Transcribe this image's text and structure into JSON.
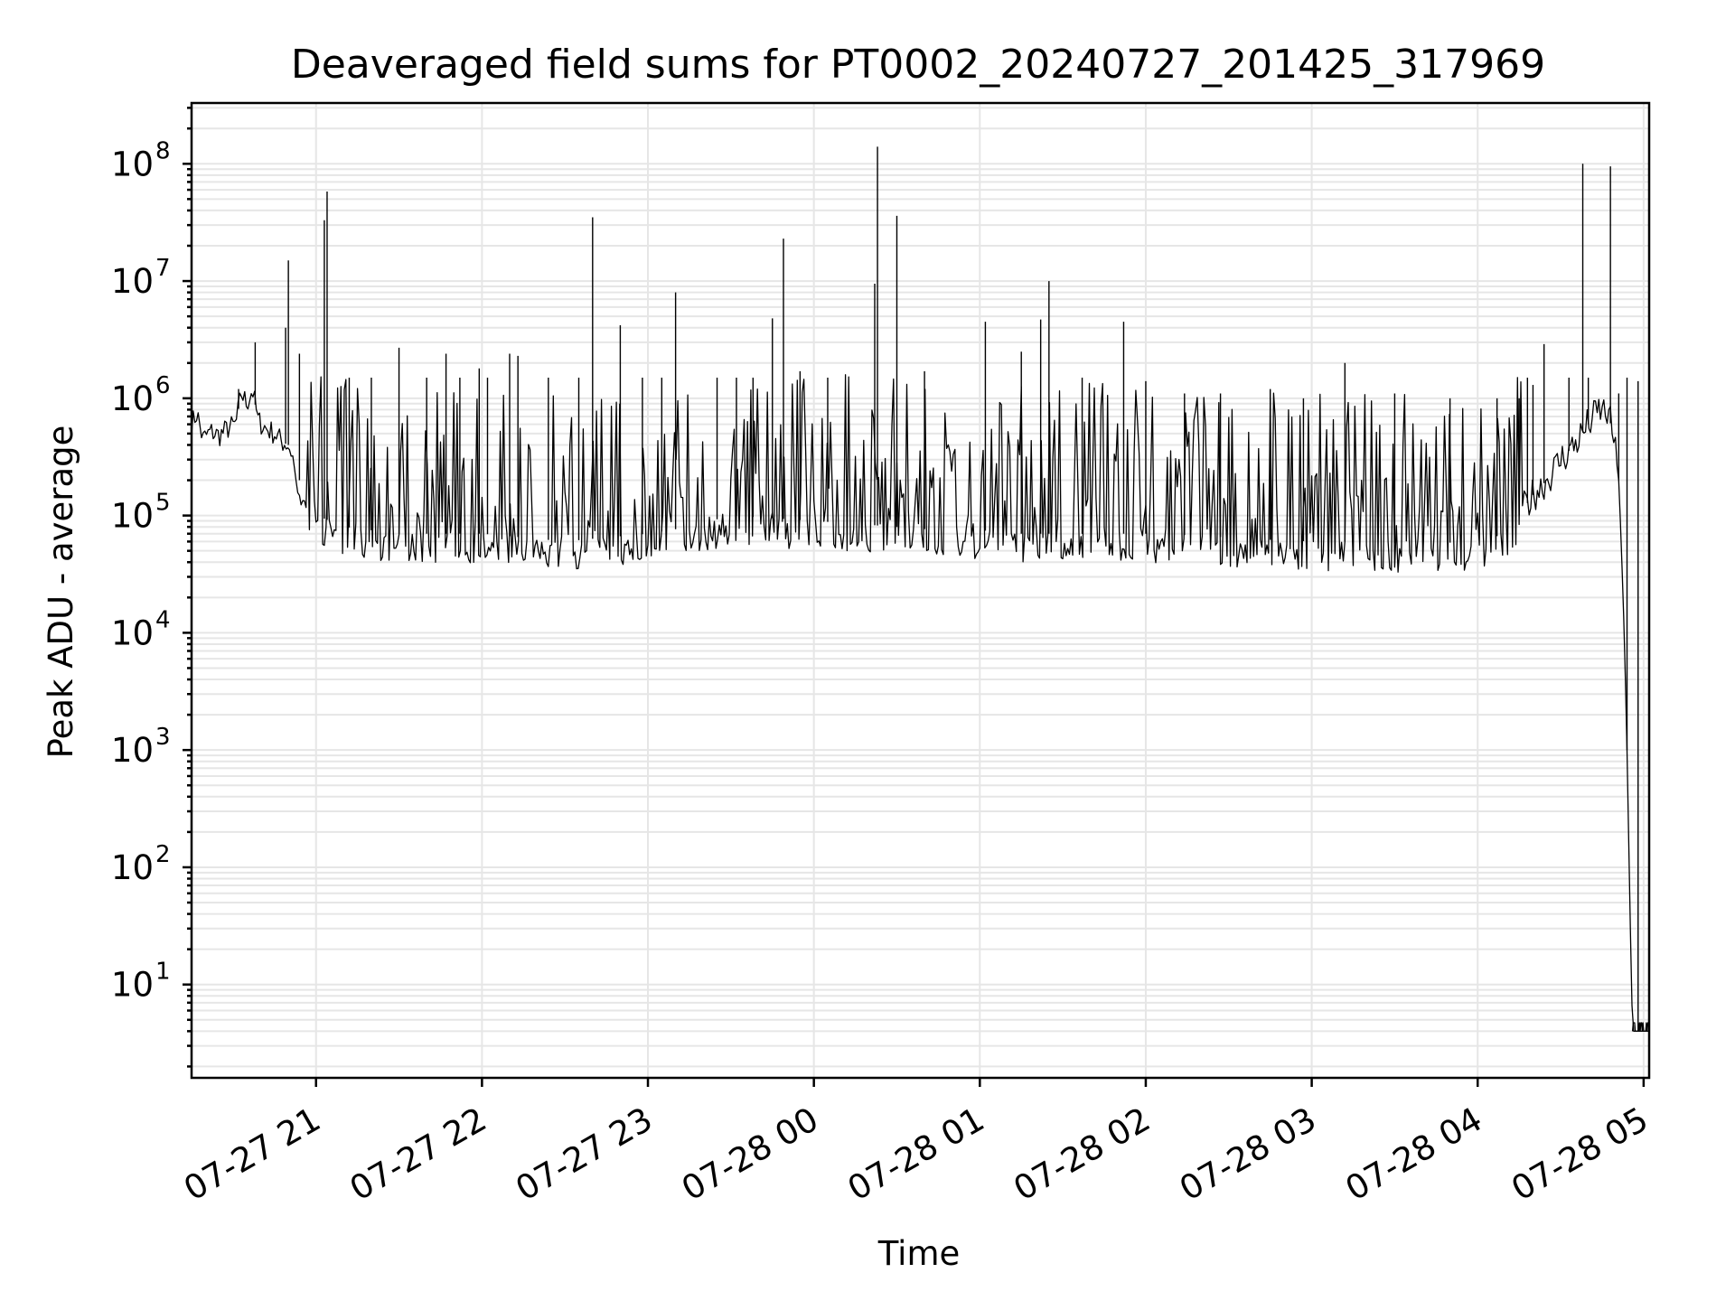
{
  "chart_data": {
    "type": "line",
    "title": "Deaveraged field sums for PT0002_20240727_201425_317969",
    "xlabel": "Time",
    "ylabel": "Peak ADU - average",
    "yscale": "log",
    "grid": true,
    "grid_color": "#e6e6e6",
    "xlim": [
      "2024-07-27 20:15",
      "2024-07-28 05:02"
    ],
    "ylim": [
      1.6,
      330000000
    ],
    "x_ticks": [
      {
        "t": "2024-07-27 21:00",
        "label": "07-27 21"
      },
      {
        "t": "2024-07-27 22:00",
        "label": "07-27 22"
      },
      {
        "t": "2024-07-27 23:00",
        "label": "07-27 23"
      },
      {
        "t": "2024-07-28 00:00",
        "label": "07-28 00"
      },
      {
        "t": "2024-07-28 01:00",
        "label": "07-28 01"
      },
      {
        "t": "2024-07-28 02:00",
        "label": "07-28 02"
      },
      {
        "t": "2024-07-28 03:00",
        "label": "07-28 03"
      },
      {
        "t": "2024-07-28 04:00",
        "label": "07-28 04"
      },
      {
        "t": "2024-07-28 05:00",
        "label": "07-28 05"
      }
    ],
    "y_ticks": [
      {
        "value": 10,
        "base": "10",
        "exp": "1"
      },
      {
        "value": 100,
        "base": "10",
        "exp": "2"
      },
      {
        "value": 1000,
        "base": "10",
        "exp": "3"
      },
      {
        "value": 10000,
        "base": "10",
        "exp": "4"
      },
      {
        "value": 100000,
        "base": "10",
        "exp": "5"
      },
      {
        "value": 1000000,
        "base": "10",
        "exp": "6"
      },
      {
        "value": 10000000,
        "base": "10",
        "exp": "7"
      },
      {
        "value": 100000000,
        "base": "10",
        "exp": "8"
      }
    ],
    "series": [
      {
        "color": "#000000",
        "points": [
          [
            "2024-07-27 20:15",
            600000
          ],
          [
            "2024-07-27 20:17",
            750000
          ],
          [
            "2024-07-27 20:19",
            450000
          ],
          [
            "2024-07-27 20:22",
            520000
          ],
          [
            "2024-07-27 20:25",
            480000
          ],
          [
            "2024-07-27 20:28",
            550000
          ],
          [
            "2024-07-27 20:31",
            600000
          ],
          [
            "2024-07-27 20:33",
            1100000
          ],
          [
            "2024-07-27 20:35",
            900000
          ],
          [
            "2024-07-27 20:37",
            1200000
          ],
          [
            "2024-07-27 20:39",
            650000
          ],
          [
            "2024-07-27 20:42",
            550000
          ],
          [
            "2024-07-27 20:45",
            500000
          ],
          [
            "2024-07-27 20:48",
            420000
          ],
          [
            "2024-07-27 20:50",
            400000
          ],
          [
            "2024-07-27 20:52",
            300000
          ],
          [
            "2024-07-27 20:54",
            200000
          ],
          [
            "2024-07-27 20:56",
            150000
          ],
          [
            "2024-07-27 20:58",
            120000
          ],
          [
            "2024-07-27 21:00",
            100000
          ],
          [
            "2024-07-27 21:05",
            90000
          ],
          [
            "2024-07-27 21:10",
            80000
          ],
          [
            "2024-07-27 21:20",
            75000
          ],
          [
            "2024-07-27 21:30",
            70000
          ],
          [
            "2024-07-27 21:45",
            70000
          ],
          [
            "2024-07-27 22:00",
            70000
          ],
          [
            "2024-07-27 22:15",
            65000
          ],
          [
            "2024-07-27 22:30",
            60000
          ],
          [
            "2024-07-27 22:45",
            65000
          ],
          [
            "2024-07-27 23:00",
            70000
          ],
          [
            "2024-07-27 23:15",
            80000
          ],
          [
            "2024-07-27 23:30",
            100000
          ],
          [
            "2024-07-27 23:45",
            95000
          ],
          [
            "2024-07-28 00:00",
            90000
          ],
          [
            "2024-07-28 00:15",
            85000
          ],
          [
            "2024-07-28 00:30",
            80000
          ],
          [
            "2024-07-28 00:45",
            75000
          ],
          [
            "2024-07-28 01:00",
            75000
          ],
          [
            "2024-07-28 01:15",
            70000
          ],
          [
            "2024-07-28 01:30",
            70000
          ],
          [
            "2024-07-28 01:45",
            70000
          ],
          [
            "2024-07-28 02:00",
            70000
          ],
          [
            "2024-07-28 02:15",
            68000
          ],
          [
            "2024-07-28 02:30",
            65000
          ],
          [
            "2024-07-28 02:45",
            62000
          ],
          [
            "2024-07-28 03:00",
            60000
          ],
          [
            "2024-07-28 03:15",
            60000
          ],
          [
            "2024-07-28 03:30",
            58000
          ],
          [
            "2024-07-28 03:45",
            58000
          ],
          [
            "2024-07-28 04:00",
            60000
          ],
          [
            "2024-07-28 04:10",
            70000
          ],
          [
            "2024-07-28 04:15",
            100000
          ],
          [
            "2024-07-28 04:20",
            150000
          ],
          [
            "2024-07-28 04:25",
            200000
          ],
          [
            "2024-07-28 04:30",
            300000
          ],
          [
            "2024-07-28 04:35",
            400000
          ],
          [
            "2024-07-28 04:40",
            600000
          ],
          [
            "2024-07-28 04:44",
            800000
          ],
          [
            "2024-07-28 04:47",
            750000
          ],
          [
            "2024-07-28 04:49",
            500000
          ],
          [
            "2024-07-28 04:51",
            200000
          ],
          [
            "2024-07-28 04:52",
            50000
          ],
          [
            "2024-07-28 04:53",
            10000
          ],
          [
            "2024-07-28 04:54",
            1000
          ],
          [
            "2024-07-28 04:55",
            50
          ],
          [
            "2024-07-28 04:56",
            4
          ],
          [
            "2024-07-28 05:02",
            4
          ]
        ]
      }
    ],
    "spikes": [
      [
        "2024-07-27 20:32",
        1200000
      ],
      [
        "2024-07-27 20:38",
        3000000
      ],
      [
        "2024-07-27 20:49",
        4000000
      ],
      [
        "2024-07-27 20:50",
        15000000
      ],
      [
        "2024-07-27 20:54",
        2400000
      ],
      [
        "2024-07-27 21:03",
        33000000
      ],
      [
        "2024-07-27 21:04",
        58000000
      ],
      [
        "2024-07-27 21:12",
        1500000
      ],
      [
        "2024-07-27 21:20",
        1500000
      ],
      [
        "2024-07-27 21:30",
        2700000
      ],
      [
        "2024-07-27 21:40",
        1500000
      ],
      [
        "2024-07-27 21:47",
        2400000
      ],
      [
        "2024-07-27 21:52",
        1500000
      ],
      [
        "2024-07-27 21:59",
        1800000
      ],
      [
        "2024-07-27 22:02",
        1500000
      ],
      [
        "2024-07-27 22:10",
        2400000
      ],
      [
        "2024-07-27 22:13",
        2300000
      ],
      [
        "2024-07-27 22:24",
        1500000
      ],
      [
        "2024-07-27 22:35",
        1500000
      ],
      [
        "2024-07-27 22:40",
        35000000
      ],
      [
        "2024-07-27 22:50",
        4200000
      ],
      [
        "2024-07-27 22:58",
        1500000
      ],
      [
        "2024-07-27 23:05",
        1500000
      ],
      [
        "2024-07-27 23:10",
        8000000
      ],
      [
        "2024-07-27 23:25",
        1500000
      ],
      [
        "2024-07-27 23:32",
        1500000
      ],
      [
        "2024-07-27 23:38",
        1500000
      ],
      [
        "2024-07-27 23:45",
        4800000
      ],
      [
        "2024-07-27 23:49",
        23000000
      ],
      [
        "2024-07-27 23:55",
        1700000
      ],
      [
        "2024-07-28 00:05",
        1500000
      ],
      [
        "2024-07-28 00:22",
        9500000
      ],
      [
        "2024-07-28 00:23",
        140000000
      ],
      [
        "2024-07-28 00:30",
        36000000
      ],
      [
        "2024-07-28 00:40",
        1700000
      ],
      [
        "2024-07-28 01:02",
        4500000
      ],
      [
        "2024-07-28 01:15",
        2500000
      ],
      [
        "2024-07-28 01:22",
        4700000
      ],
      [
        "2024-07-28 01:25",
        10000000
      ],
      [
        "2024-07-28 01:37",
        1500000
      ],
      [
        "2024-07-28 01:52",
        4500000
      ],
      [
        "2024-07-28 02:00",
        1400000
      ],
      [
        "2024-07-28 02:14",
        1100000
      ],
      [
        "2024-07-28 02:27",
        1100000
      ],
      [
        "2024-07-28 02:45",
        1200000
      ],
      [
        "2024-07-28 02:57",
        1000000
      ],
      [
        "2024-07-28 03:12",
        2000000
      ],
      [
        "2024-07-28 03:30",
        1100000
      ],
      [
        "2024-07-28 03:50",
        1000000
      ],
      [
        "2024-07-28 04:07",
        1000000
      ],
      [
        "2024-07-28 04:15",
        1000000
      ],
      [
        "2024-07-28 04:18",
        1500000
      ],
      [
        "2024-07-28 04:24",
        2900000
      ],
      [
        "2024-07-28 04:33",
        1500000
      ],
      [
        "2024-07-28 04:38",
        100000000
      ],
      [
        "2024-07-28 04:40",
        1500000
      ],
      [
        "2024-07-28 04:48",
        95000000
      ],
      [
        "2024-07-28 04:51",
        1100000
      ],
      [
        "2024-07-28 04:54",
        1500000
      ],
      [
        "2024-07-28 04:58",
        1400000
      ],
      [
        "2024-07-28 04:20",
        1300000
      ]
    ]
  }
}
